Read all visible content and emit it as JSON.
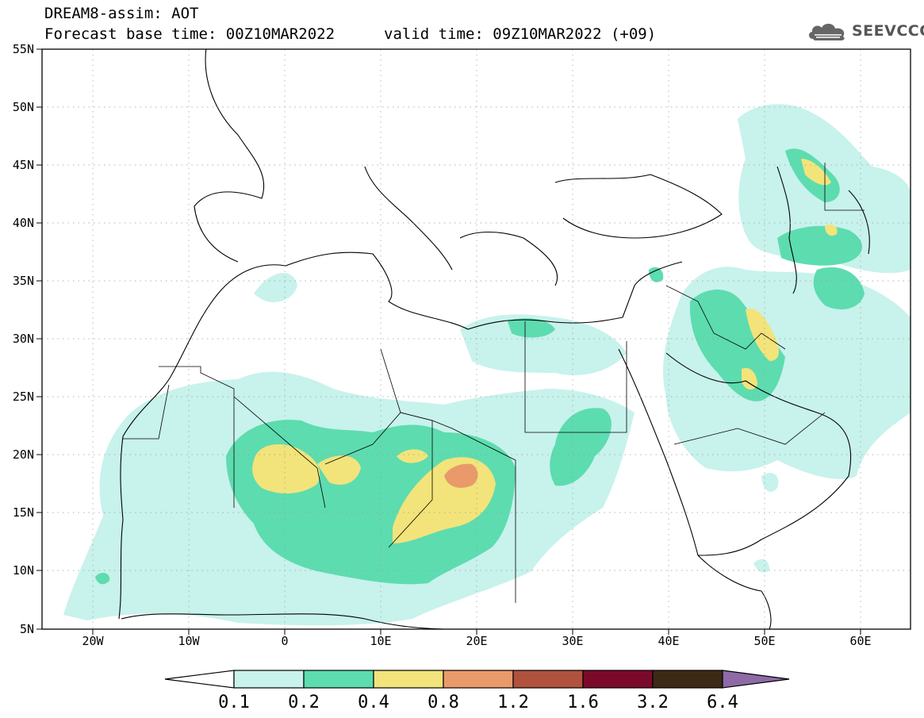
{
  "header": {
    "title": "DREAM8-assim: AOT",
    "base_time": "Forecast base time: 00Z10MAR2022",
    "valid_time": "valid time: 09Z10MAR2022 (+09)"
  },
  "logo": {
    "text": "SEEVCCC",
    "icon": "cloud-icon"
  },
  "map": {
    "lon_range": [
      -25,
      65
    ],
    "lat_range": [
      5,
      55
    ],
    "lon_ticks": [
      {
        "value": -20,
        "label": "20W"
      },
      {
        "value": -10,
        "label": "10W"
      },
      {
        "value": 0,
        "label": "0"
      },
      {
        "value": 10,
        "label": "10E"
      },
      {
        "value": 20,
        "label": "20E"
      },
      {
        "value": 30,
        "label": "30E"
      },
      {
        "value": 40,
        "label": "40E"
      },
      {
        "value": 50,
        "label": "50E"
      },
      {
        "value": 60,
        "label": "60E"
      }
    ],
    "lat_ticks": [
      {
        "value": 55,
        "label": "55N"
      },
      {
        "value": 50,
        "label": "50N"
      },
      {
        "value": 45,
        "label": "45N"
      },
      {
        "value": 40,
        "label": "40N"
      },
      {
        "value": 35,
        "label": "35N"
      },
      {
        "value": 30,
        "label": "30N"
      },
      {
        "value": 25,
        "label": "25N"
      },
      {
        "value": 20,
        "label": "20N"
      },
      {
        "value": 15,
        "label": "15N"
      },
      {
        "value": 10,
        "label": "10N"
      },
      {
        "value": 5,
        "label": "5N"
      }
    ],
    "grid": true
  },
  "colorbar": {
    "labels": [
      "0.1",
      "0.2",
      "0.4",
      "0.8",
      "1.2",
      "1.6",
      "3.2",
      "6.4"
    ],
    "colors": [
      "#c8f2ec",
      "#5ddcb0",
      "#f2e47a",
      "#ea9a6a",
      "#b0523e",
      "#7b0a2a",
      "#3c2a16",
      "#8e6aa6"
    ],
    "under_color": "#ffffff"
  }
}
